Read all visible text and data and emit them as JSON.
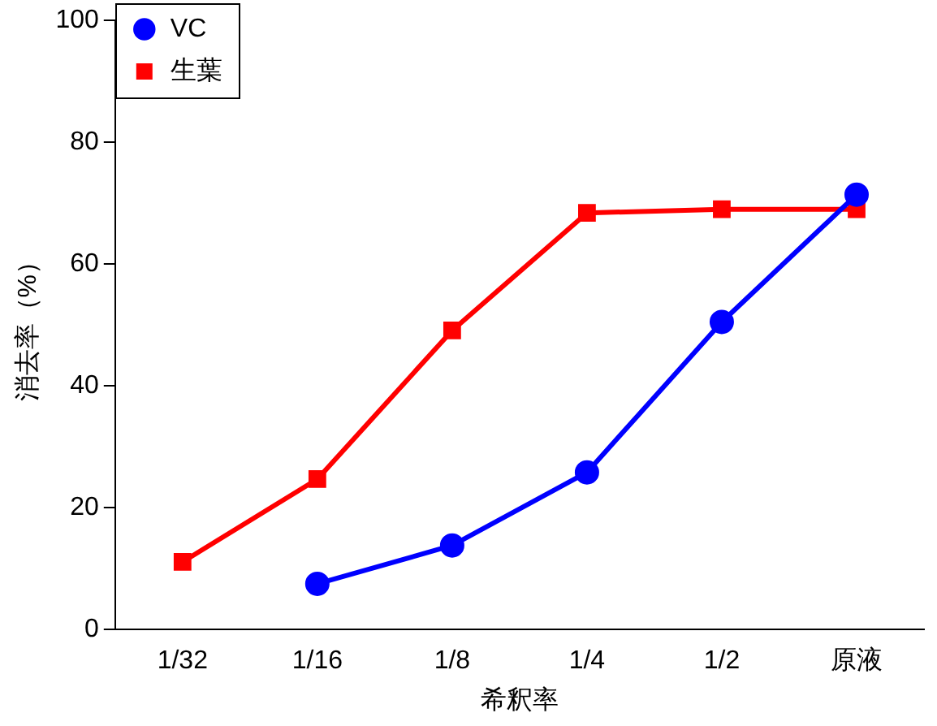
{
  "chart_data": {
    "type": "line",
    "xlabel": "希釈率",
    "ylabel": "消去率（%）",
    "categories": [
      "1/32",
      "1/16",
      "1/8",
      "1/4",
      "1/2",
      "原液"
    ],
    "series": [
      {
        "name": "VC",
        "color": "#0000ff",
        "marker": "circle",
        "values": [
          null,
          7.5,
          13.8,
          25.8,
          50.5,
          71.4
        ]
      },
      {
        "name": "生葉",
        "color": "#ff0000",
        "marker": "square",
        "values": [
          11.1,
          24.7,
          49.1,
          68.4,
          69,
          69
        ]
      }
    ],
    "ylim": [
      0,
      100
    ],
    "yticks": [
      0,
      20,
      40,
      60,
      80,
      100
    ],
    "grid": false,
    "legend": "top left",
    "line_style": "solid"
  }
}
